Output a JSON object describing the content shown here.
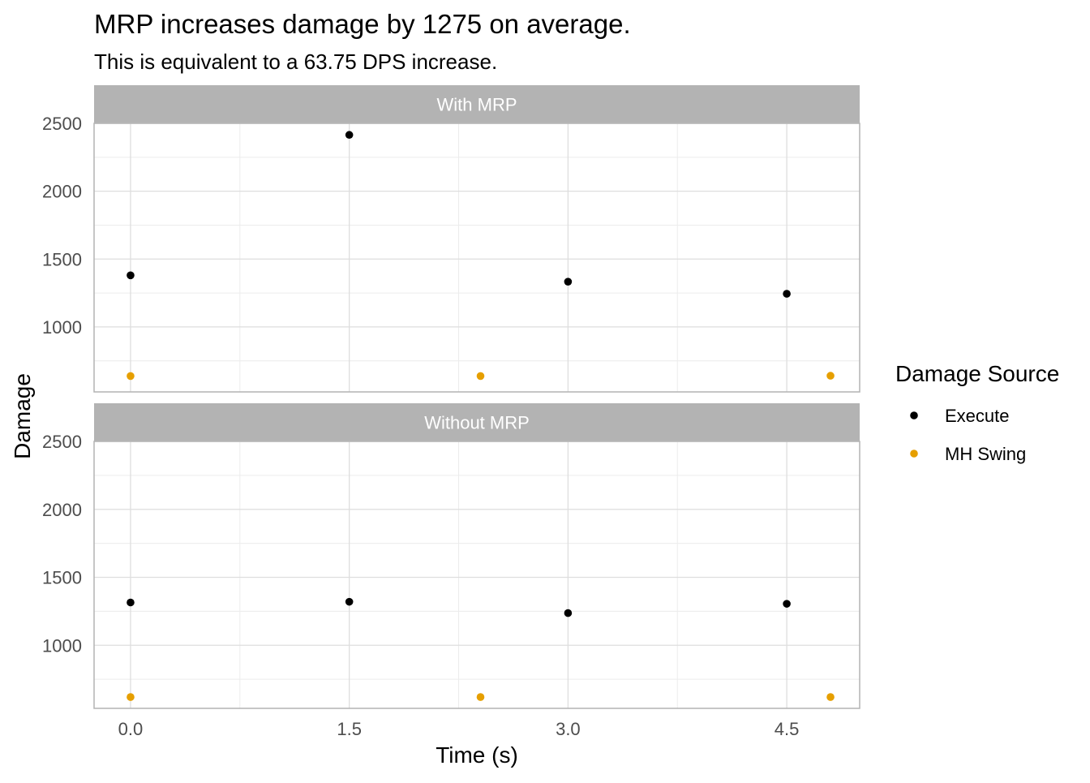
{
  "chart_data": {
    "type": "scatter",
    "title": "MRP increases damage by 1275 on average.",
    "subtitle": "This is equivalent to a 63.75 DPS increase.",
    "xlabel": "Time (s)",
    "ylabel": "Damage",
    "xlim": [
      -0.25,
      5.0
    ],
    "ylim": [
      500,
      2500
    ],
    "x_ticks": [
      0.0,
      1.5,
      3.0,
      4.5
    ],
    "x_tick_labels": [
      "0.0",
      "1.5",
      "3.0",
      "4.5"
    ],
    "y_ticks": [
      1000,
      1500,
      2000,
      2500
    ],
    "y_tick_labels": [
      "1000",
      "1500",
      "2000",
      "2500"
    ],
    "grid": true,
    "legend": {
      "title": "Damage Source",
      "placement": "right"
    },
    "facets": [
      {
        "label": "With MRP",
        "series": [
          {
            "name": "Execute",
            "color": "#000000",
            "points": [
              {
                "x": 0.0,
                "y": 1380
              },
              {
                "x": 1.5,
                "y": 2415
              },
              {
                "x": 3.0,
                "y": 1333
              },
              {
                "x": 4.5,
                "y": 1244
              }
            ]
          },
          {
            "name": "MH Swing",
            "color": "#E69F00",
            "points": [
              {
                "x": 0.0,
                "y": 638
              },
              {
                "x": 2.4,
                "y": 638
              },
              {
                "x": 4.8,
                "y": 640
              }
            ]
          }
        ]
      },
      {
        "label": "Without MRP",
        "series": [
          {
            "name": "Execute",
            "color": "#000000",
            "points": [
              {
                "x": 0.0,
                "y": 1315
              },
              {
                "x": 1.5,
                "y": 1320
              },
              {
                "x": 3.0,
                "y": 1237
              },
              {
                "x": 4.5,
                "y": 1305
              }
            ]
          },
          {
            "name": "MH Swing",
            "color": "#E69F00",
            "points": [
              {
                "x": 0.0,
                "y": 619
              },
              {
                "x": 2.4,
                "y": 619
              },
              {
                "x": 4.8,
                "y": 619
              }
            ]
          }
        ]
      }
    ]
  }
}
